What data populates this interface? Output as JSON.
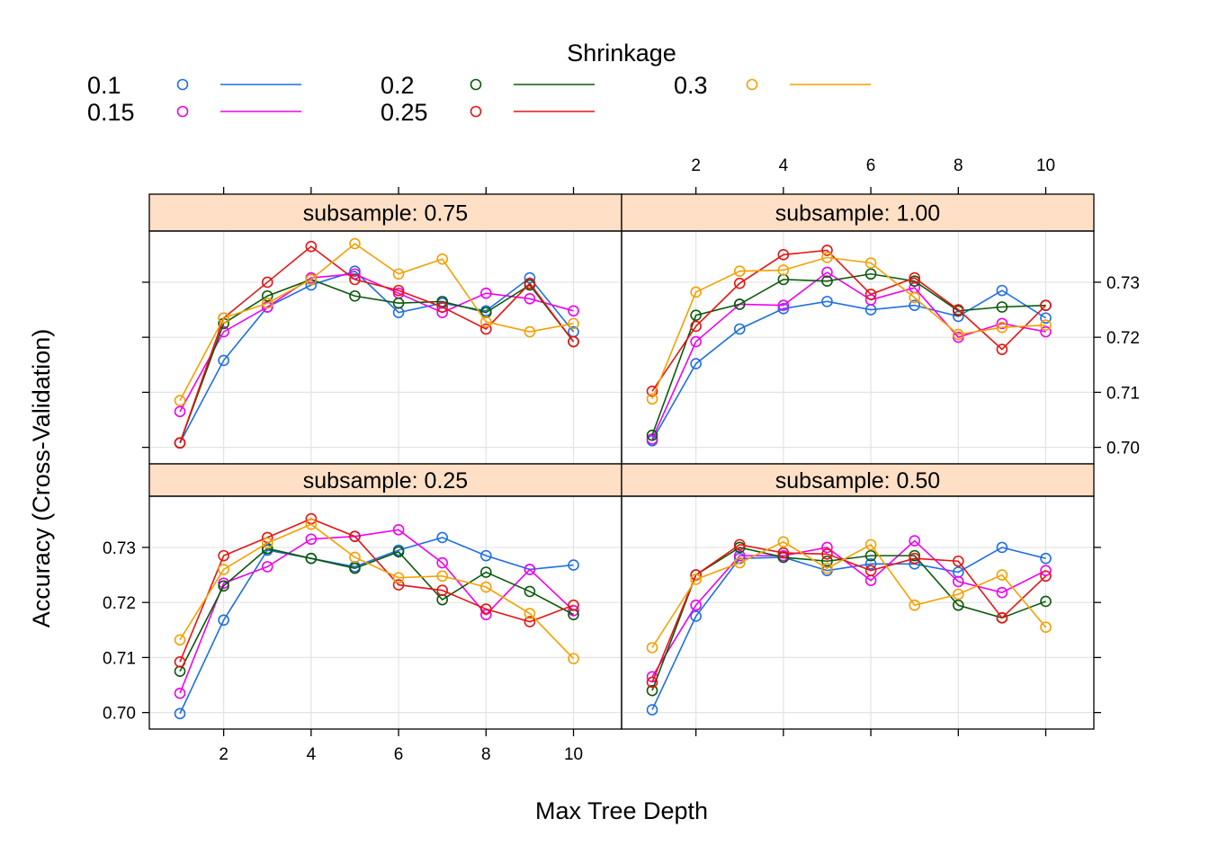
{
  "chart_data": {
    "type": "line",
    "layout": "lattice 2x2",
    "xlabel": "Max Tree Depth",
    "ylabel": "Accuracy (Cross-Validation)",
    "x": [
      1,
      2,
      3,
      4,
      5,
      6,
      7,
      8,
      9,
      10
    ],
    "xlim": [
      0.3,
      11.1
    ],
    "ylim": [
      0.697,
      0.7393
    ],
    "x_ticks": [
      2,
      4,
      6,
      8,
      10
    ],
    "y_ticks": [
      0.7,
      0.71,
      0.72,
      0.73
    ],
    "y_tick_labels": [
      "0.70",
      "0.71",
      "0.72",
      "0.73"
    ],
    "grid": true,
    "legend": {
      "title": "Shrinkage",
      "placement": "top",
      "entries": [
        {
          "name": "0.1",
          "color": "#1e6ee6"
        },
        {
          "name": "0.15",
          "color": "#f000f0"
        },
        {
          "name": "0.2",
          "color": "#0a5a0a"
        },
        {
          "name": "0.25",
          "color": "#e61414"
        },
        {
          "name": "0.3",
          "color": "#f5a000"
        }
      ]
    },
    "panels": [
      {
        "strip": "subsample: 0.75",
        "position": "top-left",
        "series": [
          {
            "name": "0.1",
            "color": "#1e6ee6",
            "values": [
              0.7008,
              0.7158,
              0.7255,
              0.7295,
              0.732,
              0.7245,
              0.7262,
              0.7248,
              0.7308,
              0.721
            ]
          },
          {
            "name": "0.15",
            "color": "#f000f0",
            "values": [
              0.7065,
              0.721,
              0.7255,
              0.7308,
              0.7315,
              0.728,
              0.7245,
              0.728,
              0.727,
              0.7248
            ]
          },
          {
            "name": "0.2",
            "color": "#0a5a0a",
            "values": [
              0.7008,
              0.7225,
              0.7275,
              0.7305,
              0.7275,
              0.7262,
              0.7265,
              0.7245,
              0.7295,
              0.7192
            ]
          },
          {
            "name": "0.25",
            "color": "#e61414",
            "values": [
              0.7008,
              0.7235,
              0.73,
              0.7365,
              0.7305,
              0.7285,
              0.7255,
              0.7215,
              0.7298,
              0.7192
            ]
          },
          {
            "name": "0.3",
            "color": "#f5a000",
            "values": [
              0.7085,
              0.7235,
              0.7262,
              0.7305,
              0.737,
              0.7315,
              0.7342,
              0.7228,
              0.721,
              0.7225
            ]
          }
        ]
      },
      {
        "strip": "subsample: 1.00",
        "position": "top-right",
        "series": [
          {
            "name": "0.1",
            "color": "#1e6ee6",
            "values": [
              0.7012,
              0.7152,
              0.7215,
              0.7252,
              0.7265,
              0.725,
              0.7258,
              0.7238,
              0.7285,
              0.7235
            ]
          },
          {
            "name": "0.15",
            "color": "#f000f0",
            "values": [
              0.7015,
              0.7192,
              0.726,
              0.7258,
              0.7318,
              0.7268,
              0.729,
              0.72,
              0.7225,
              0.721
            ]
          },
          {
            "name": "0.2",
            "color": "#0a5a0a",
            "values": [
              0.7022,
              0.724,
              0.726,
              0.7305,
              0.7302,
              0.7315,
              0.7302,
              0.7248,
              0.7255,
              0.7258
            ]
          },
          {
            "name": "0.25",
            "color": "#e61414",
            "values": [
              0.7102,
              0.722,
              0.7298,
              0.735,
              0.7358,
              0.7278,
              0.7308,
              0.725,
              0.7178,
              0.7258
            ]
          },
          {
            "name": "0.3",
            "color": "#f5a000",
            "values": [
              0.7088,
              0.7282,
              0.732,
              0.7322,
              0.7345,
              0.7335,
              0.7272,
              0.7205,
              0.7218,
              0.7222
            ]
          }
        ]
      },
      {
        "strip": "subsample: 0.25",
        "position": "bottom-left",
        "series": [
          {
            "name": "0.1",
            "color": "#1e6ee6",
            "values": [
              0.6998,
              0.7168,
              0.7295,
              0.728,
              0.7265,
              0.7295,
              0.7318,
              0.7285,
              0.726,
              0.7268
            ]
          },
          {
            "name": "0.15",
            "color": "#f000f0",
            "values": [
              0.7035,
              0.7235,
              0.7265,
              0.7315,
              0.732,
              0.7332,
              0.7272,
              0.7178,
              0.726,
              0.7185
            ]
          },
          {
            "name": "0.2",
            "color": "#0a5a0a",
            "values": [
              0.7075,
              0.723,
              0.7298,
              0.728,
              0.7262,
              0.7292,
              0.7205,
              0.7255,
              0.722,
              0.7178
            ]
          },
          {
            "name": "0.25",
            "color": "#e61414",
            "values": [
              0.7092,
              0.7285,
              0.7318,
              0.7352,
              0.732,
              0.7232,
              0.7222,
              0.7188,
              0.7165,
              0.7195
            ]
          },
          {
            "name": "0.3",
            "color": "#f5a000",
            "values": [
              0.7132,
              0.726,
              0.7308,
              0.7342,
              0.7282,
              0.7245,
              0.7248,
              0.7228,
              0.718,
              0.7098
            ]
          }
        ]
      },
      {
        "strip": "subsample: 0.50",
        "position": "bottom-right",
        "series": [
          {
            "name": "0.1",
            "color": "#1e6ee6",
            "values": [
              0.7005,
              0.7175,
              0.728,
              0.7282,
              0.7258,
              0.727,
              0.727,
              0.7255,
              0.73,
              0.728
            ]
          },
          {
            "name": "0.15",
            "color": "#f000f0",
            "values": [
              0.7065,
              0.7195,
              0.7285,
              0.7285,
              0.73,
              0.724,
              0.7312,
              0.7238,
              0.7218,
              0.7258
            ]
          },
          {
            "name": "0.2",
            "color": "#0a5a0a",
            "values": [
              0.704,
              0.725,
              0.73,
              0.7282,
              0.7275,
              0.7285,
              0.7285,
              0.7195,
              0.7172,
              0.7202
            ]
          },
          {
            "name": "0.25",
            "color": "#e61414",
            "values": [
              0.7055,
              0.725,
              0.7305,
              0.729,
              0.7288,
              0.7258,
              0.728,
              0.7275,
              0.7172,
              0.7248
            ]
          },
          {
            "name": "0.3",
            "color": "#f5a000",
            "values": [
              0.7118,
              0.7242,
              0.7272,
              0.731,
              0.7262,
              0.7305,
              0.7195,
              0.7215,
              0.725,
              0.7155
            ]
          }
        ]
      }
    ]
  }
}
